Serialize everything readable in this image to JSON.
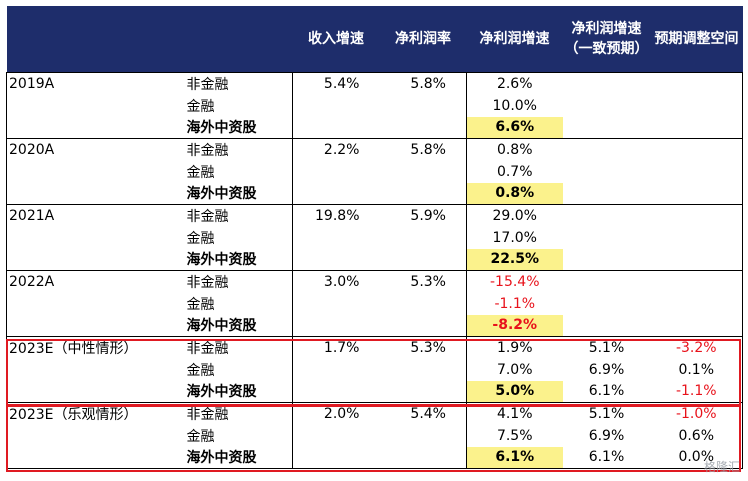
{
  "header": {
    "col_revenue": "收入增速",
    "col_margin": "净利润率",
    "col_profit_growth": "净利润增速",
    "col_consensus": "净利润增速（一致预期）",
    "col_adjust": "预期调整空间"
  },
  "groups": [
    {
      "year": "2019A",
      "rows": [
        {
          "cat": "非金融",
          "rev": "5.4%",
          "margin": "5.8%",
          "growth": "2.6%",
          "consensus": "",
          "adjust": ""
        },
        {
          "cat": "金融",
          "rev": "",
          "margin": "",
          "growth": "10.0%",
          "consensus": "",
          "adjust": ""
        },
        {
          "cat": "海外中资股",
          "rev": "",
          "margin": "",
          "growth": "6.6%",
          "consensus": "",
          "adjust": ""
        }
      ]
    },
    {
      "year": "2020A",
      "rows": [
        {
          "cat": "非金融",
          "rev": "2.2%",
          "margin": "5.8%",
          "growth": "0.8%",
          "consensus": "",
          "adjust": ""
        },
        {
          "cat": "金融",
          "rev": "",
          "margin": "",
          "growth": "0.7%",
          "consensus": "",
          "adjust": ""
        },
        {
          "cat": "海外中资股",
          "rev": "",
          "margin": "",
          "growth": "0.8%",
          "consensus": "",
          "adjust": ""
        }
      ]
    },
    {
      "year": "2021A",
      "rows": [
        {
          "cat": "非金融",
          "rev": "19.8%",
          "margin": "5.9%",
          "growth": "29.0%",
          "consensus": "",
          "adjust": ""
        },
        {
          "cat": "金融",
          "rev": "",
          "margin": "",
          "growth": "17.0%",
          "consensus": "",
          "adjust": ""
        },
        {
          "cat": "海外中资股",
          "rev": "",
          "margin": "",
          "growth": "22.5%",
          "consensus": "",
          "adjust": ""
        }
      ]
    },
    {
      "year": "2022A",
      "rows": [
        {
          "cat": "非金融",
          "rev": "3.0%",
          "margin": "5.3%",
          "growth": "-15.4%",
          "consensus": "",
          "adjust": ""
        },
        {
          "cat": "金融",
          "rev": "",
          "margin": "",
          "growth": "-1.1%",
          "consensus": "",
          "adjust": ""
        },
        {
          "cat": "海外中资股",
          "rev": "",
          "margin": "",
          "growth": "-8.2%",
          "consensus": "",
          "adjust": ""
        }
      ]
    },
    {
      "year": "2023E（中性情形）",
      "rows": [
        {
          "cat": "非金融",
          "rev": "1.7%",
          "margin": "5.3%",
          "growth": "1.9%",
          "consensus": "5.1%",
          "adjust": "-3.2%"
        },
        {
          "cat": "金融",
          "rev": "",
          "margin": "",
          "growth": "7.0%",
          "consensus": "6.9%",
          "adjust": "0.1%"
        },
        {
          "cat": "海外中资股",
          "rev": "",
          "margin": "",
          "growth": "5.0%",
          "consensus": "6.1%",
          "adjust": "-1.1%"
        }
      ]
    },
    {
      "year": "2023E（乐观情形）",
      "rows": [
        {
          "cat": "非金融",
          "rev": "2.0%",
          "margin": "5.4%",
          "growth": "4.1%",
          "consensus": "5.1%",
          "adjust": "-1.0%"
        },
        {
          "cat": "金融",
          "rev": "",
          "margin": "",
          "growth": "7.5%",
          "consensus": "6.9%",
          "adjust": "0.6%"
        },
        {
          "cat": "海外中资股",
          "rev": "",
          "margin": "",
          "growth": "6.1%",
          "consensus": "6.1%",
          "adjust": "0.0%"
        }
      ]
    }
  ],
  "colors": {
    "header_bg": "#1e2d6b",
    "highlight": "#fbf28c",
    "negative": "#e8121b",
    "box": "#e01a22"
  },
  "watermark": "格隆汇"
}
